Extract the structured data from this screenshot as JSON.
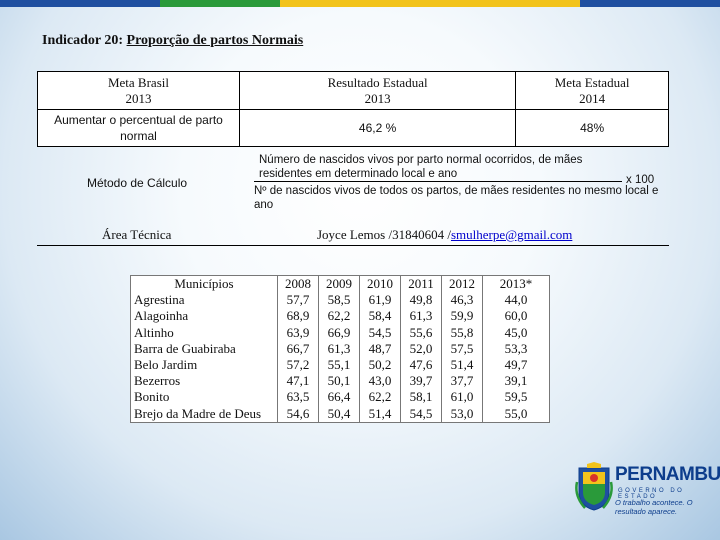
{
  "colors": {
    "stripe_blue": "#1f4fa0",
    "stripe_green": "#2a9a3a",
    "stripe_yellow": "#f2c31b",
    "link": "#0000cc"
  },
  "header": {
    "prefix": "Indicador 20: ",
    "title": "Proporção de partos Normais"
  },
  "meta_table": {
    "col1_head1": "Meta Brasil",
    "col1_head2": "2013",
    "col2_head1": "Resultado Estadual",
    "col2_head2": "2013",
    "col3_head1": "Meta Estadual",
    "col3_head2": "2014",
    "col1_value": "Aumentar o percentual de parto normal",
    "col2_value": "46,2 %",
    "col3_value": "48%"
  },
  "metodo": {
    "label": "Método de Cálculo",
    "numerator_line1": "Número de nascidos   vivos por parto normal ocorridos, de mães",
    "numerator_line2": "residentes em determinado local e ano",
    "multiplier": "x 100",
    "denominator": "Nº de nascidos vivos de todos os partos, de mães residentes no mesmo local e ano"
  },
  "area_tecnica": {
    "label": "Área Técnica",
    "contact": "Joyce Lemos /31840604 /",
    "email": "smulherpe@gmail.com"
  },
  "data_table": {
    "header": "Municípios",
    "years": [
      "2008",
      "2009",
      "2010",
      "2011",
      "2012",
      "2013*"
    ],
    "municipios": [
      "Agrestina",
      "Alagoinha",
      "Altinho",
      "Barra de Guabiraba",
      "Belo Jardim",
      "Bezerros",
      "Bonito",
      "Brejo da Madre de Deus"
    ],
    "values": [
      [
        "57,7",
        "68,9",
        "63,9",
        "66,7",
        "57,2",
        "47,1",
        "63,5",
        "54,6"
      ],
      [
        "58,5",
        "62,2",
        "66,9",
        "61,3",
        "55,1",
        "50,1",
        "66,4",
        "50,4"
      ],
      [
        "61,9",
        "58,4",
        "54,5",
        "48,7",
        "50,2",
        "43,0",
        "62,2",
        "51,4"
      ],
      [
        "49,8",
        "61,3",
        "55,6",
        "52,0",
        "47,6",
        "39,7",
        "58,1",
        "54,5"
      ],
      [
        "46,3",
        "59,9",
        "55,8",
        "57,5",
        "51,4",
        "37,7",
        "61,0",
        "53,0"
      ],
      [
        "44,0",
        "60,0",
        "45,0",
        "53,3",
        "49,7",
        "39,1",
        "59,5",
        "55,0"
      ]
    ]
  },
  "logo": {
    "brand": "PERNAMBUCO",
    "sub": "GOVERNO DO ESTADO",
    "slogan": "O trabalho acontece. O resultado aparece."
  }
}
